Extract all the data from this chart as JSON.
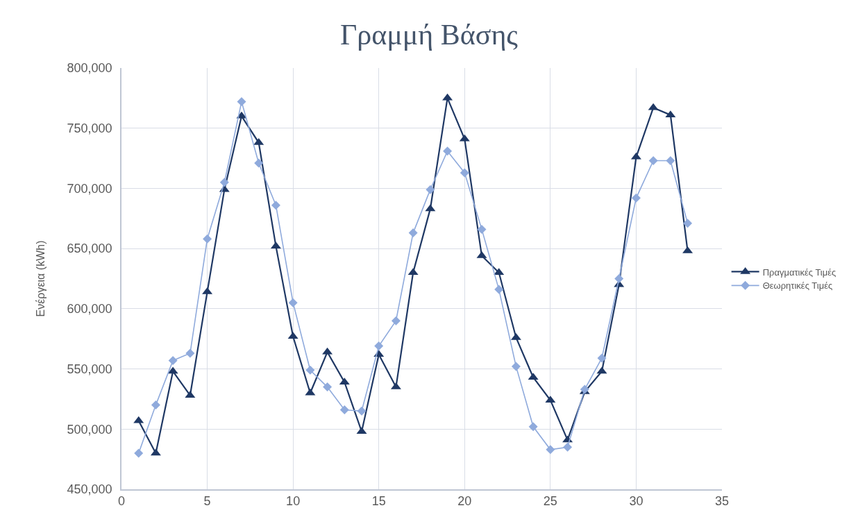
{
  "chart_data": {
    "type": "line",
    "title": "Γραμμή Βάσης",
    "ylabel": "Ενέργεια (kWh)",
    "x": [
      1,
      2,
      3,
      4,
      5,
      6,
      7,
      8,
      9,
      10,
      11,
      12,
      13,
      14,
      15,
      16,
      17,
      18,
      19,
      20,
      21,
      22,
      23,
      24,
      25,
      26,
      27,
      28,
      29,
      30,
      31,
      32,
      33
    ],
    "series": [
      {
        "name": "Πραγματικές Τιμές",
        "color": "#1f3864",
        "marker": "triangle",
        "values": [
          507000,
          480000,
          548000,
          528000,
          614000,
          699000,
          760000,
          738000,
          652000,
          577000,
          530000,
          564000,
          539000,
          498000,
          562000,
          535000,
          630000,
          683000,
          775000,
          741000,
          644000,
          630000,
          576000,
          543000,
          524000,
          491000,
          531000,
          548000,
          620000,
          726000,
          767000,
          761000,
          648000
        ]
      },
      {
        "name": "Θεωρητικές Τιμές",
        "color": "#8faadc",
        "marker": "diamond",
        "values": [
          480000,
          520000,
          557000,
          563000,
          658000,
          705000,
          772000,
          721000,
          686000,
          605000,
          549000,
          535000,
          516000,
          515000,
          569000,
          590000,
          663000,
          699000,
          731000,
          713000,
          666000,
          616000,
          552000,
          502000,
          483000,
          485000,
          533000,
          559000,
          625000,
          692000,
          723000,
          723000,
          671000
        ]
      }
    ],
    "xlim": [
      0,
      35
    ],
    "xticks": [
      0,
      5,
      10,
      15,
      20,
      25,
      30,
      35
    ],
    "ylim": [
      450000,
      800000
    ],
    "yticks": [
      {
        "value": 450000,
        "label": "450,000"
      },
      {
        "value": 500000,
        "label": "500,000"
      },
      {
        "value": 550000,
        "label": "550,000"
      },
      {
        "value": 600000,
        "label": "600,000"
      },
      {
        "value": 650000,
        "label": "650,000"
      },
      {
        "value": 700000,
        "label": "700,000"
      },
      {
        "value": 750000,
        "label": "750,000"
      },
      {
        "value": 800000,
        "label": "800,000"
      }
    ],
    "grid": true,
    "legend": "right",
    "line_style": "solid"
  }
}
